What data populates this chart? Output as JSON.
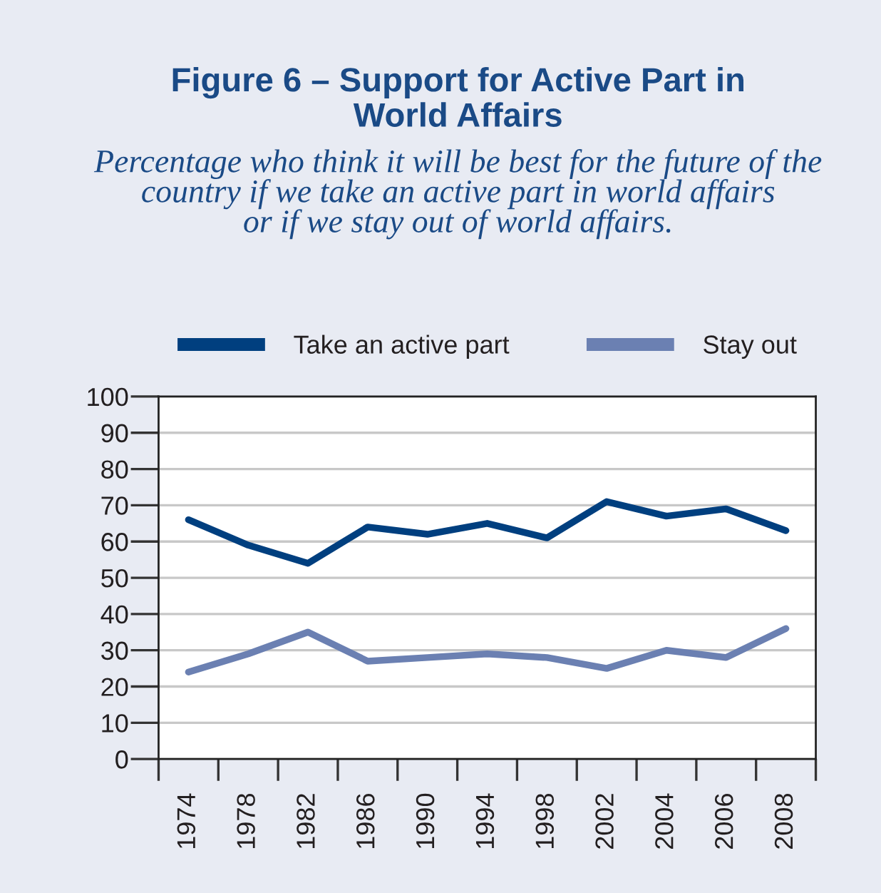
{
  "chart_data": {
    "type": "line",
    "title": "Figure 6 – Support for Active Part in\nWorld Affairs",
    "subtitle": "Percentage who think it will be best for the future of the\ncountry if we take an active part in world affairs\nor if we stay out of world affairs.",
    "categories": [
      "1974",
      "1978",
      "1982",
      "1986",
      "1990",
      "1994",
      "1998",
      "2002",
      "2004",
      "2006",
      "2008"
    ],
    "series": [
      {
        "name": "Take an active part",
        "color": "#003f7f",
        "values": [
          66,
          59,
          54,
          64,
          62,
          65,
          61,
          71,
          67,
          69,
          63
        ]
      },
      {
        "name": "Stay out",
        "color": "#6b80b2",
        "values": [
          24,
          29,
          35,
          27,
          28,
          29,
          28,
          25,
          30,
          28,
          36
        ]
      }
    ],
    "ylim": [
      0,
      100
    ],
    "yticks": [
      0,
      10,
      20,
      30,
      40,
      50,
      60,
      70,
      80,
      90,
      100
    ],
    "grid": "y",
    "legend": "top",
    "line_style": "solid"
  }
}
